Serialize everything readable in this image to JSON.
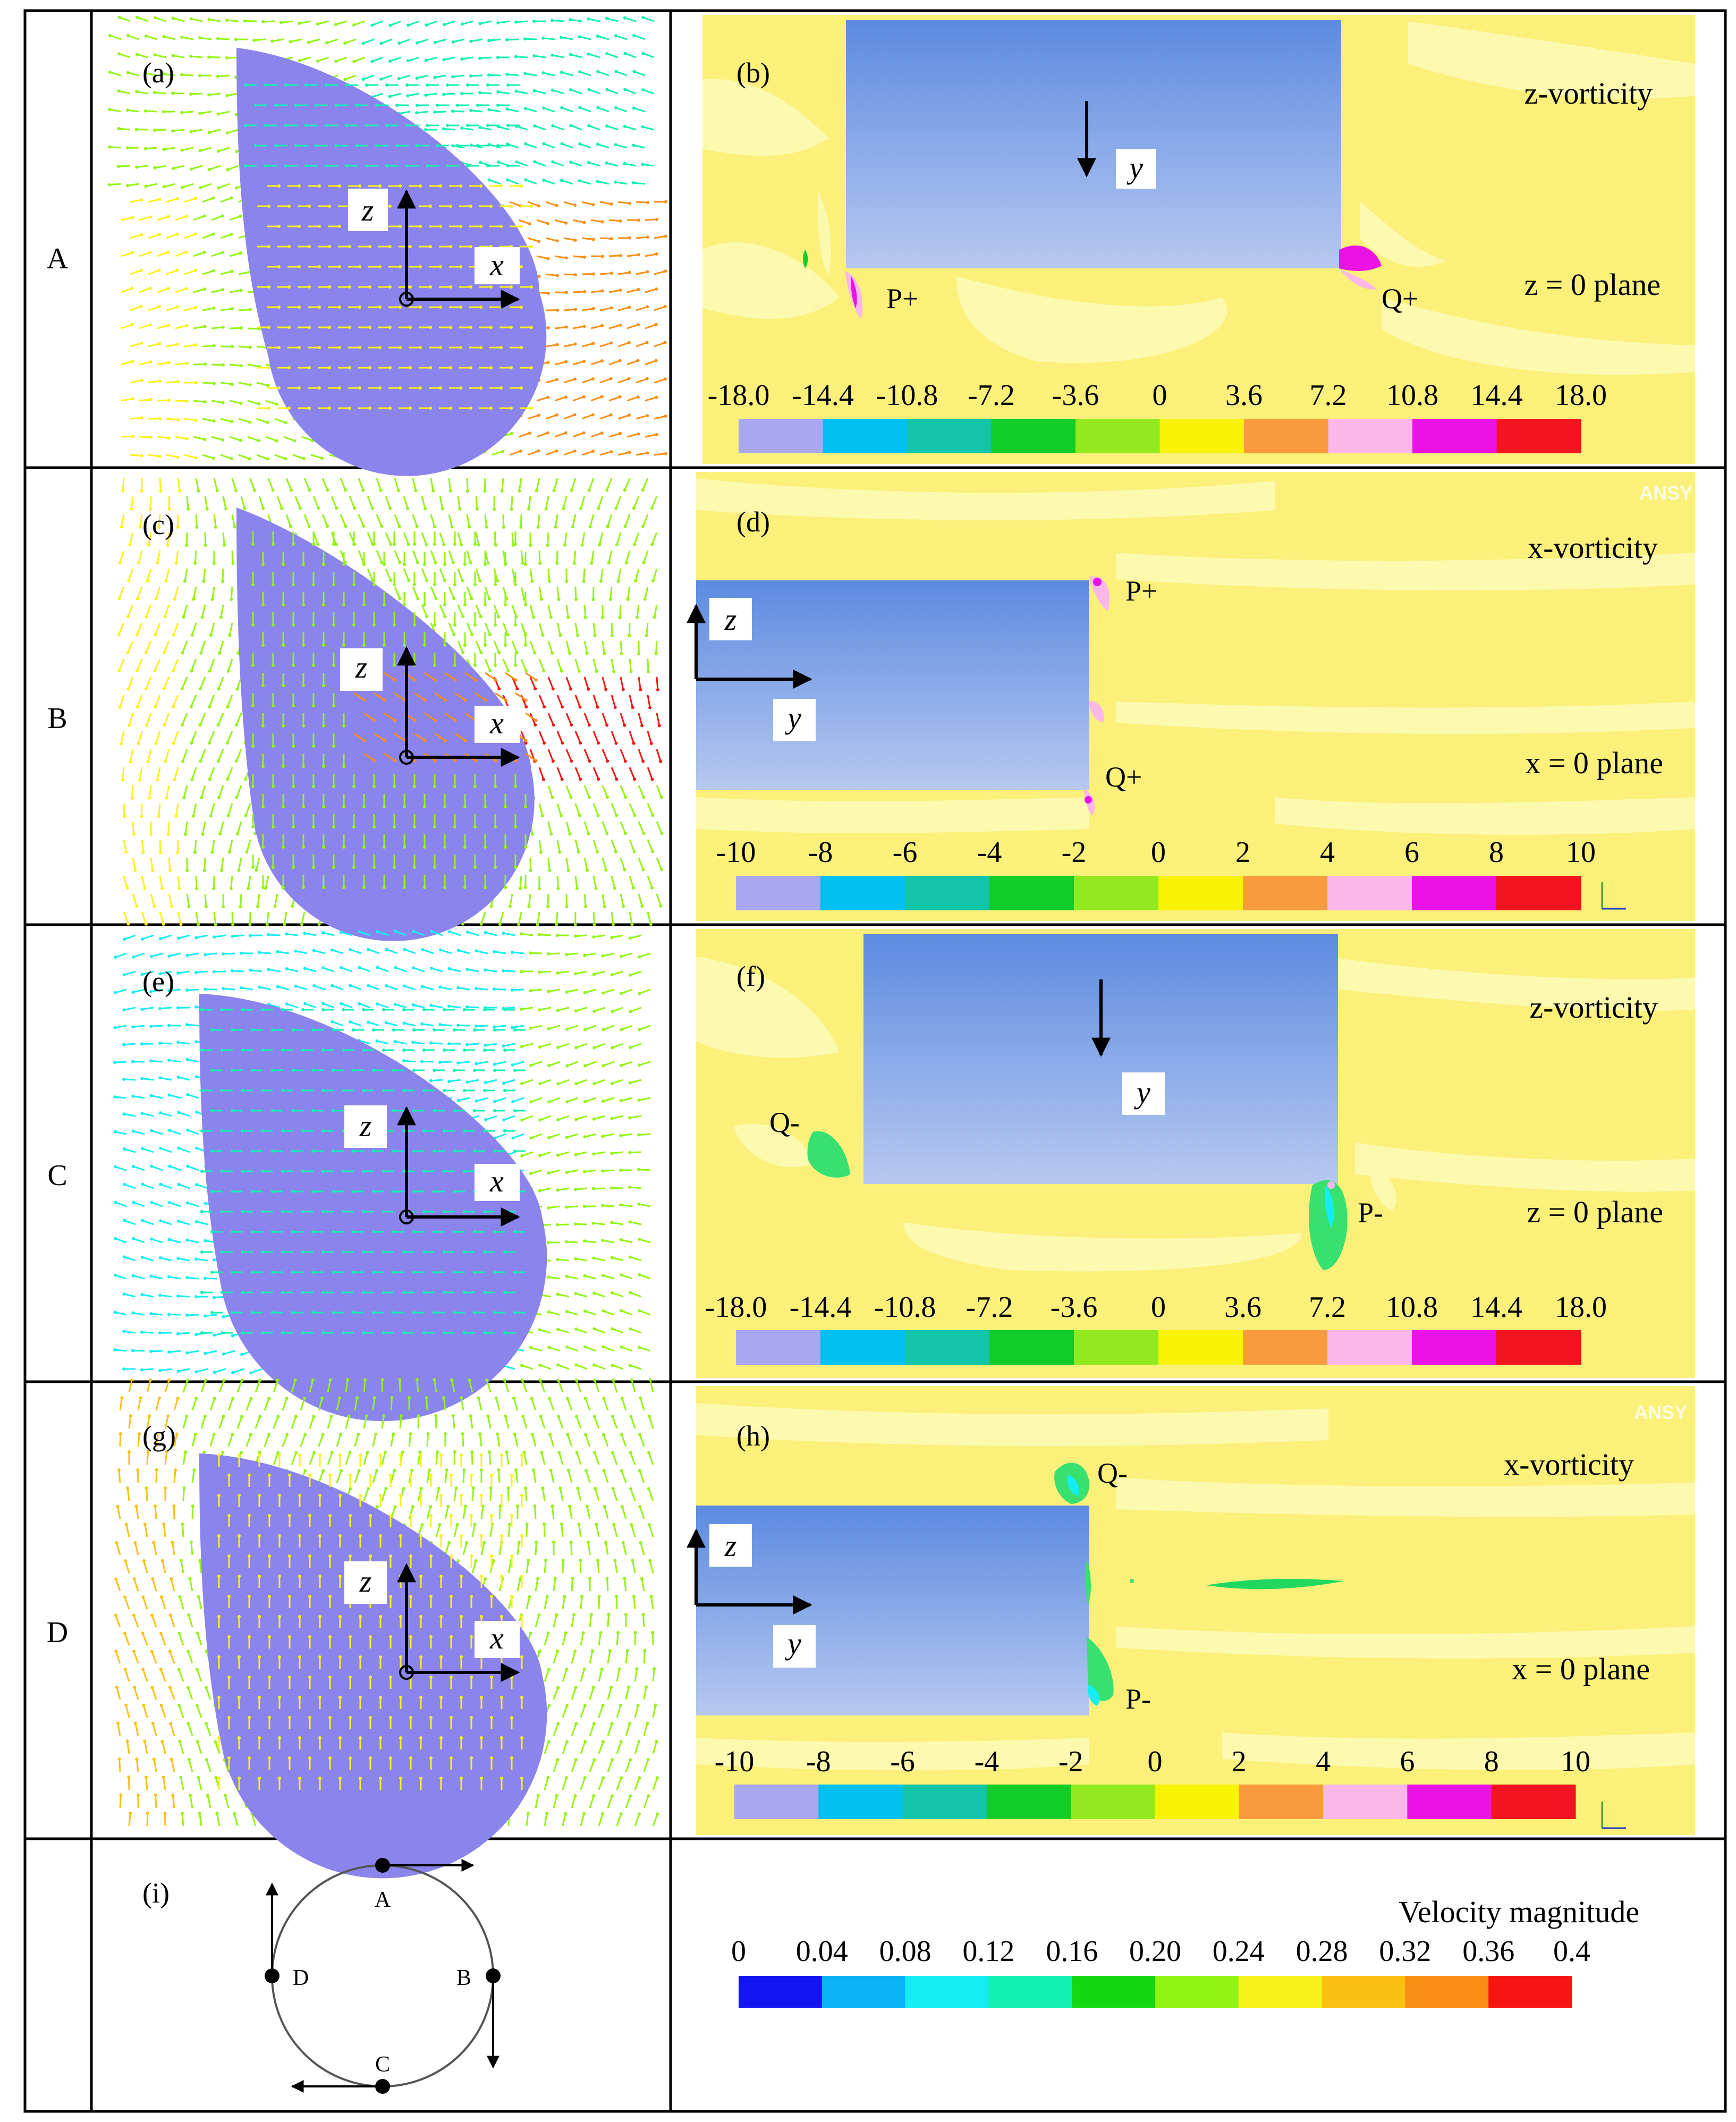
{
  "rows": [
    {
      "label": "A"
    },
    {
      "label": "B"
    },
    {
      "label": "C"
    },
    {
      "label": "D"
    }
  ],
  "panels": {
    "a": {
      "tag": "(a)"
    },
    "b": {
      "tag": "(b)",
      "title": "z-vorticity",
      "plane": "z = 0 plane",
      "axis": "y",
      "p": "P+",
      "q": "Q+"
    },
    "c": {
      "tag": "(c)"
    },
    "d": {
      "tag": "(d)",
      "title": "x-vorticity",
      "plane": "x = 0 plane",
      "axis_z": "z",
      "axis_y": "y",
      "p": "P+",
      "q": "Q+",
      "watermark": "ANSY"
    },
    "e": {
      "tag": "(e)"
    },
    "f": {
      "tag": "(f)",
      "title": "z-vorticity",
      "plane": "z = 0 plane",
      "axis": "y",
      "p": "P-",
      "q": "Q-"
    },
    "g": {
      "tag": "(g)"
    },
    "h": {
      "tag": "(h)",
      "title": "x-vorticity",
      "plane": "x = 0 plane",
      "axis_z": "z",
      "axis_y": "y",
      "p": "P-",
      "q": "Q-",
      "watermark": "ANSY"
    },
    "i": {
      "tag": "(i)",
      "points": [
        "A",
        "B",
        "C",
        "D"
      ]
    }
  },
  "axes": {
    "z": "z",
    "x": "x"
  },
  "scales": {
    "z_vorticity": {
      "labels": [
        "-18.0",
        "-14.4",
        "-10.8",
        "-7.2",
        "-3.6",
        "0",
        "3.6",
        "7.2",
        "10.8",
        "14.4",
        "18.0"
      ],
      "colors": [
        "#a9a7ef",
        "#00c0f2",
        "#12c4a8",
        "#12cc28",
        "#92ea1e",
        "#f8f204",
        "#fa9a40",
        "#fbb6ea",
        "#ea12e4",
        "#f2141e"
      ]
    },
    "x_vorticity": {
      "labels": [
        "-10",
        "-8",
        "-6",
        "-4",
        "-2",
        "0",
        "2",
        "4",
        "6",
        "8",
        "10"
      ],
      "colors": [
        "#a9a7ef",
        "#00c0f2",
        "#12c4a8",
        "#12cc28",
        "#92ea1e",
        "#f8f204",
        "#fa9a40",
        "#fbb6ea",
        "#ea12e4",
        "#f2141e"
      ]
    },
    "velocity": {
      "title": "Velocity magnitude",
      "labels": [
        "0",
        "0.04",
        "0.08",
        "0.12",
        "0.16",
        "0.20",
        "0.24",
        "0.28",
        "0.32",
        "0.36",
        "0.4"
      ],
      "colors": [
        "#1414f0",
        "#0ab2f6",
        "#14eef2",
        "#12f0b2",
        "#12d814",
        "#92f412",
        "#f8f21a",
        "#fcc012",
        "#fa8e14",
        "#f81410"
      ]
    }
  },
  "colors": {
    "shape": "#8a84ec",
    "block_top": "#5f8ee0",
    "block_bottom": "#b4c6f0",
    "contour_bg": "#fbf07a",
    "grid": "#000000"
  }
}
